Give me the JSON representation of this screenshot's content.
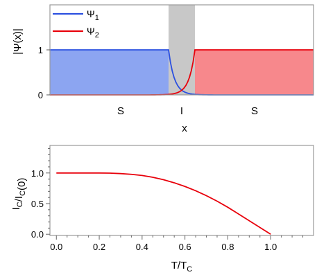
{
  "chart_data": [
    {
      "type": "line",
      "panel": "top",
      "title": "",
      "xlabel": "x",
      "ylabel": "|Ψ(x)|",
      "y_ticks": [
        "0",
        "1"
      ],
      "region_labels": [
        "S",
        "I",
        "S"
      ],
      "legend": {
        "placement": "top-left",
        "entries": [
          "Ψ1",
          "Ψ2"
        ]
      },
      "legend_display": [
        {
          "base": "Ψ",
          "sub": "1"
        },
        {
          "base": "Ψ",
          "sub": "2"
        }
      ],
      "ylim": [
        0,
        2.0
      ],
      "xlim": [
        0,
        10
      ],
      "barrier": [
        4.5,
        5.5
      ],
      "series": [
        {
          "name": "Ψ1",
          "color": "#2b50e0",
          "fill": "#6f8fee",
          "plateau": 1,
          "plateau_range": [
            0,
            4.5
          ],
          "decay_length": 0.22
        },
        {
          "name": "Ψ2",
          "color": "#e8000b",
          "fill": "#f56a6f",
          "plateau": 1,
          "plateau_range": [
            5.5,
            10
          ],
          "decay_length": 0.22
        }
      ]
    },
    {
      "type": "line",
      "panel": "bottom",
      "title": "",
      "xlabel": "T/TC",
      "xlabel_display": {
        "base": "T/T",
        "sub": "C"
      },
      "ylabel": "IC/IC(0)",
      "ylabel_display": [
        {
          "base": "I",
          "sub": "C"
        },
        {
          "base": "/I",
          "sub": "C"
        },
        {
          "base": "(0)",
          "sub": ""
        }
      ],
      "x_ticks": [
        "0.0",
        "0.2",
        "0.4",
        "0.6",
        "0.8",
        "1.0"
      ],
      "y_ticks": [
        "0.0",
        "0.5",
        "1.0"
      ],
      "xlim": [
        -0.03,
        1.2
      ],
      "ylim": [
        -0.02,
        1.45
      ],
      "series": [
        {
          "name": "",
          "color": "#e8000b",
          "x": [
            0.0,
            0.05,
            0.1,
            0.15,
            0.2,
            0.25,
            0.3,
            0.35,
            0.4,
            0.45,
            0.5,
            0.55,
            0.6,
            0.65,
            0.7,
            0.75,
            0.8,
            0.85,
            0.9,
            0.95,
            1.0
          ],
          "y": [
            1.0,
            1.0,
            1.0,
            1.0,
            1.0,
            0.998,
            0.99,
            0.978,
            0.96,
            0.93,
            0.89,
            0.84,
            0.78,
            0.71,
            0.63,
            0.54,
            0.44,
            0.33,
            0.22,
            0.11,
            0.0
          ]
        }
      ]
    }
  ]
}
